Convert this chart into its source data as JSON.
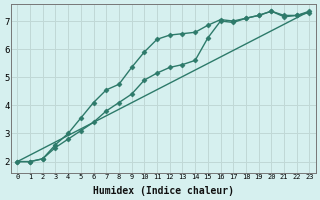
{
  "xlabel": "Humidex (Indice chaleur)",
  "ylabel": "",
  "background_color": "#d6f0ef",
  "grid_color": "#c0d8d6",
  "line_color": "#2d7a6a",
  "xlim": [
    -0.5,
    23.5
  ],
  "ylim": [
    1.6,
    7.6
  ],
  "xticks": [
    0,
    1,
    2,
    3,
    4,
    5,
    6,
    7,
    8,
    9,
    10,
    11,
    12,
    13,
    14,
    15,
    16,
    17,
    18,
    19,
    20,
    21,
    22,
    23
  ],
  "yticks": [
    2,
    3,
    4,
    5,
    6,
    7
  ],
  "series": [
    {
      "x": [
        0,
        1,
        2,
        3,
        4,
        5,
        6,
        7,
        8,
        9,
        10,
        11,
        12,
        13,
        14,
        15,
        16,
        17,
        18,
        19,
        20,
        21,
        22,
        23
      ],
      "y": [
        2.0,
        2.0,
        2.1,
        2.6,
        3.0,
        3.55,
        4.1,
        4.55,
        4.75,
        5.35,
        5.9,
        6.35,
        6.5,
        6.55,
        6.6,
        6.85,
        7.05,
        7.0,
        7.1,
        7.2,
        7.35,
        7.2,
        7.2,
        7.35
      ],
      "marker": "D",
      "markersize": 2.5,
      "linewidth": 1.0
    },
    {
      "x": [
        0,
        1,
        2,
        3,
        4,
        5,
        6,
        7,
        8,
        9,
        10,
        11,
        12,
        13,
        14,
        15,
        16,
        17,
        18,
        19,
        20,
        21,
        22,
        23
      ],
      "y": [
        2.0,
        2.0,
        2.1,
        2.5,
        2.8,
        3.1,
        3.4,
        3.8,
        4.1,
        4.4,
        4.9,
        5.15,
        5.35,
        5.45,
        5.6,
        6.4,
        7.0,
        6.95,
        7.1,
        7.2,
        7.35,
        7.15,
        7.2,
        7.3
      ],
      "marker": "D",
      "markersize": 2.5,
      "linewidth": 1.0
    },
    {
      "x": [
        0,
        23
      ],
      "y": [
        2.0,
        7.35
      ],
      "marker": null,
      "markersize": 0,
      "linewidth": 1.0
    }
  ]
}
